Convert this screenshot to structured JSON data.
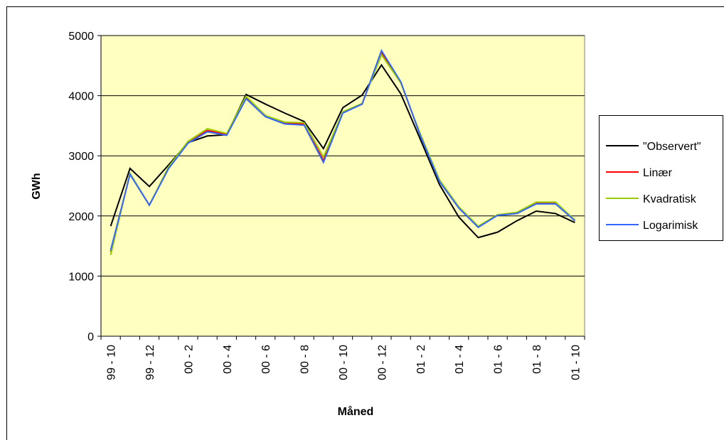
{
  "chart_data": {
    "type": "line",
    "xlabel": "Måned",
    "ylabel": "GWh",
    "categories": [
      "99 - 10",
      null,
      "99 - 12",
      null,
      "00 - 2",
      null,
      "00 - 4",
      null,
      "00 - 6",
      null,
      "00 - 8",
      null,
      "00 - 10",
      null,
      "00 - 12",
      null,
      "01 - 2",
      null,
      "01 - 4",
      null,
      "01 - 6",
      null,
      "01 - 8",
      null,
      "01 - 10"
    ],
    "series": [
      {
        "name": "\"Observert\"",
        "color": "#000000",
        "values": [
          1830,
          2790,
          2490,
          2850,
          3220,
          3330,
          3350,
          4020,
          3860,
          3710,
          3570,
          3120,
          3800,
          4010,
          4510,
          4030,
          3280,
          2520,
          1980,
          1640,
          1730,
          1920,
          2080,
          2040,
          1890
        ]
      },
      {
        "name": "Linær",
        "color": "#ff0000",
        "values": [
          1400,
          2700,
          2180,
          2800,
          3230,
          3420,
          3360,
          3970,
          3670,
          3550,
          3530,
          2920,
          3720,
          3860,
          4720,
          4220,
          3350,
          2580,
          2140,
          1820,
          2020,
          2040,
          2210,
          2210,
          1920
        ]
      },
      {
        "name": "Kvadratisk",
        "color": "#99cc00",
        "values": [
          1350,
          2710,
          2180,
          2820,
          3240,
          3450,
          3370,
          3990,
          3670,
          3560,
          3550,
          2980,
          3730,
          3870,
          4680,
          4210,
          3370,
          2600,
          2150,
          1830,
          2020,
          2060,
          2230,
          2230,
          1930
        ]
      },
      {
        "name": "Logarimisk",
        "color": "#3366ff",
        "values": [
          1430,
          2690,
          2180,
          2790,
          3210,
          3400,
          3340,
          3950,
          3650,
          3530,
          3510,
          2890,
          3710,
          3860,
          4750,
          4230,
          3340,
          2570,
          2130,
          1810,
          2010,
          2040,
          2200,
          2200,
          1920
        ]
      }
    ],
    "ylim": [
      0,
      5000
    ],
    "yticks": [
      0,
      1000,
      2000,
      3000,
      4000,
      5000
    ],
    "grid": true,
    "plot_background": "#ffffc0",
    "legend": "right"
  }
}
